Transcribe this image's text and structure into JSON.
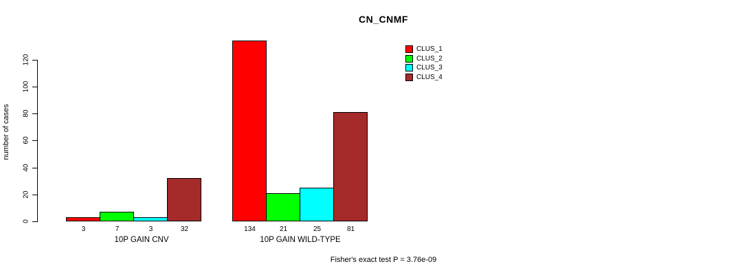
{
  "chart_data": {
    "type": "bar",
    "title": "CN_CNMF",
    "ylabel": "number of cases",
    "xlabel": "",
    "categories": [
      "10P GAIN CNV",
      "10P GAIN WILD-TYPE"
    ],
    "series": [
      {
        "name": "CLUS_1",
        "color": "#ff0000",
        "values": [
          3,
          134
        ]
      },
      {
        "name": "CLUS_2",
        "color": "#00ff00",
        "values": [
          7,
          21
        ]
      },
      {
        "name": "CLUS_3",
        "color": "#00ffff",
        "values": [
          3,
          25
        ]
      },
      {
        "name": "CLUS_4",
        "color": "#a52a2a",
        "values": [
          32,
          81
        ]
      }
    ],
    "show_value_labels": true,
    "yticks": [
      0,
      20,
      40,
      60,
      80,
      100,
      120
    ],
    "ylim": [
      0,
      139
    ],
    "grid": false,
    "legend_position": "top-right",
    "annotation": "Fisher's exact test P = 3.76e-09"
  },
  "colors": {
    "background": "#ffffff",
    "axis": "#000000",
    "text": "#000000"
  }
}
